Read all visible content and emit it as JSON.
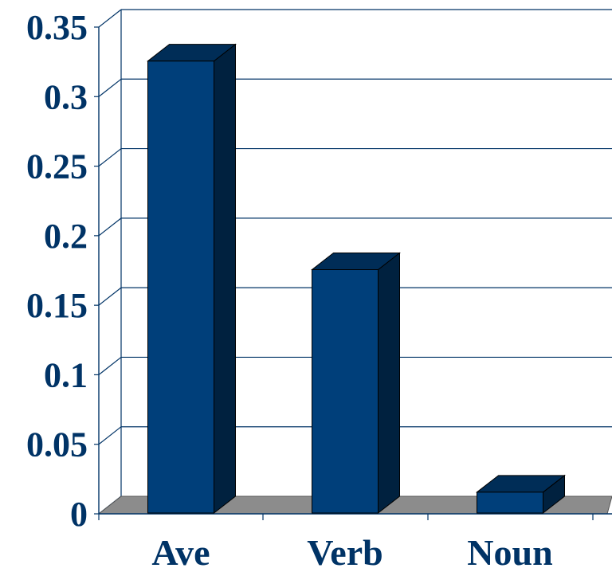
{
  "chart_data": {
    "type": "bar",
    "categories": [
      "Ave",
      "Verb",
      "Noun"
    ],
    "values": [
      0.325,
      0.175,
      0.015
    ],
    "title": "",
    "xlabel": "",
    "ylabel": "",
    "ylim": [
      0,
      0.35
    ],
    "yticks": [
      "0",
      "0.05",
      "0.1",
      "0.15",
      "0.2",
      "0.25",
      "0.3",
      "0.35"
    ],
    "grid": true,
    "style": "3d-bar",
    "colors": {
      "bar_front": "#003F7A",
      "bar_side": "#00213F",
      "bar_top": "#002D57",
      "floor": "#8C8C8C",
      "grid": "#003366",
      "text": "#003366"
    }
  }
}
